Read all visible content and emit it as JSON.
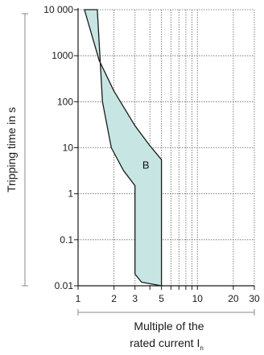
{
  "chart_data": {
    "type": "area",
    "xscale": "log",
    "yscale": "log",
    "xlim": [
      1,
      30
    ],
    "ylim": [
      0.01,
      10000
    ],
    "x_ticks": [
      1,
      2,
      3,
      4,
      5,
      6,
      7,
      8,
      9,
      10,
      20,
      30
    ],
    "x_tick_labels": [
      {
        "value": 1,
        "label": "1"
      },
      {
        "value": 2,
        "label": "2"
      },
      {
        "value": 3,
        "label": "3"
      },
      {
        "value": 5,
        "label": "5"
      },
      {
        "value": 10,
        "label": "10"
      },
      {
        "value": 20,
        "label": "20"
      },
      {
        "value": 30,
        "label": "30"
      }
    ],
    "y_ticks": [
      {
        "value": 10000,
        "label": "10 000"
      },
      {
        "value": 1000,
        "label": "1000"
      },
      {
        "value": 100,
        "label": "100"
      },
      {
        "value": 10,
        "label": "10"
      },
      {
        "value": 1,
        "label": "1"
      },
      {
        "value": 0.1,
        "label": "0.1"
      },
      {
        "value": 0.01,
        "label": "0.01"
      }
    ],
    "grid": true,
    "xlabel_line1": "Multiple of the",
    "xlabel_line2": "rated current I",
    "xlabel_subscript": "n",
    "ylabel": "Tripping time in s",
    "series": [
      {
        "name": "B",
        "fill": "#c7e6e3",
        "stroke": "#1a1a1a",
        "upper_curve": [
          [
            1.13,
            10000
          ],
          [
            1.5,
            800
          ],
          [
            2,
            170
          ],
          [
            3,
            30
          ],
          [
            4,
            11
          ],
          [
            5,
            5.5
          ]
        ],
        "lower_curve": [
          [
            1.45,
            10000
          ],
          [
            1.6,
            100
          ],
          [
            1.9,
            10
          ],
          [
            2.4,
            3.2
          ],
          [
            3,
            1.5
          ],
          [
            3,
            0.018
          ],
          [
            3.4,
            0.012
          ],
          [
            5,
            0.01
          ]
        ],
        "label_position": [
          3.7,
          3.5
        ]
      }
    ]
  }
}
